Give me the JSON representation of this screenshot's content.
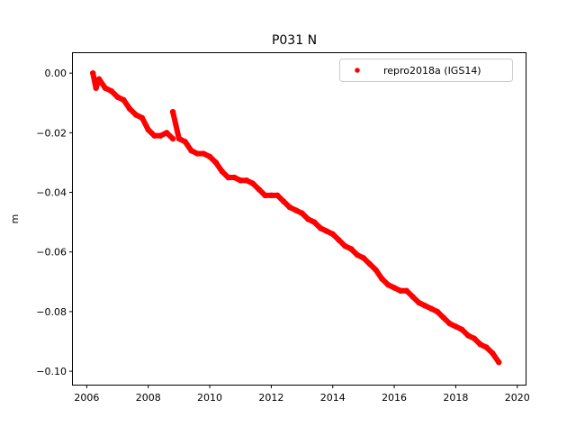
{
  "chart_data": {
    "type": "scatter",
    "title": "P031 N",
    "xlabel": "",
    "ylabel": "m",
    "xlim": [
      2005.55,
      2020.3
    ],
    "ylim": [
      -0.1045,
      0.007
    ],
    "grid": false,
    "legend_position": "top-right",
    "x_ticks": [
      "2006",
      "2008",
      "2010",
      "2012",
      "2014",
      "2016",
      "2018",
      "2020"
    ],
    "y_ticks": [
      "0.00",
      "−0.02",
      "−0.04",
      "−0.06",
      "−0.08",
      "−0.10"
    ],
    "series": [
      {
        "name": "repro2018a (IGS14)",
        "color": "#ff0000",
        "marker": "circle",
        "x": [
          2006.2,
          2006.3,
          2006.4,
          2006.6,
          2006.8,
          2007.0,
          2007.2,
          2007.4,
          2007.6,
          2007.8,
          2008.0,
          2008.2,
          2008.4,
          2008.6,
          2008.8,
          2008.8,
          2009.0,
          2009.2,
          2009.4,
          2009.6,
          2009.8,
          2010.0,
          2010.2,
          2010.4,
          2010.6,
          2010.8,
          2011.0,
          2011.2,
          2011.4,
          2011.6,
          2011.8,
          2012.0,
          2012.2,
          2012.4,
          2012.6,
          2012.8,
          2013.0,
          2013.2,
          2013.4,
          2013.6,
          2013.8,
          2014.0,
          2014.2,
          2014.4,
          2014.6,
          2014.8,
          2015.0,
          2015.2,
          2015.4,
          2015.6,
          2015.8,
          2016.0,
          2016.2,
          2016.4,
          2016.6,
          2016.8,
          2017.0,
          2017.2,
          2017.4,
          2017.6,
          2017.8,
          2018.0,
          2018.2,
          2018.4,
          2018.6,
          2018.8,
          2019.0,
          2019.2,
          2019.4
        ],
        "y": [
          0.0,
          -0.005,
          -0.002,
          -0.005,
          -0.006,
          -0.008,
          -0.009,
          -0.012,
          -0.014,
          -0.015,
          -0.019,
          -0.021,
          -0.021,
          -0.02,
          -0.022,
          -0.013,
          -0.022,
          -0.023,
          -0.026,
          -0.027,
          -0.027,
          -0.028,
          -0.03,
          -0.033,
          -0.035,
          -0.035,
          -0.036,
          -0.036,
          -0.037,
          -0.039,
          -0.041,
          -0.041,
          -0.041,
          -0.043,
          -0.045,
          -0.046,
          -0.047,
          -0.049,
          -0.05,
          -0.052,
          -0.053,
          -0.054,
          -0.056,
          -0.058,
          -0.059,
          -0.061,
          -0.062,
          -0.064,
          -0.066,
          -0.069,
          -0.071,
          -0.072,
          -0.073,
          -0.073,
          -0.075,
          -0.077,
          -0.078,
          -0.079,
          -0.08,
          -0.082,
          -0.084,
          -0.085,
          -0.086,
          -0.088,
          -0.089,
          -0.091,
          -0.092,
          -0.094,
          -0.097
        ]
      }
    ]
  }
}
